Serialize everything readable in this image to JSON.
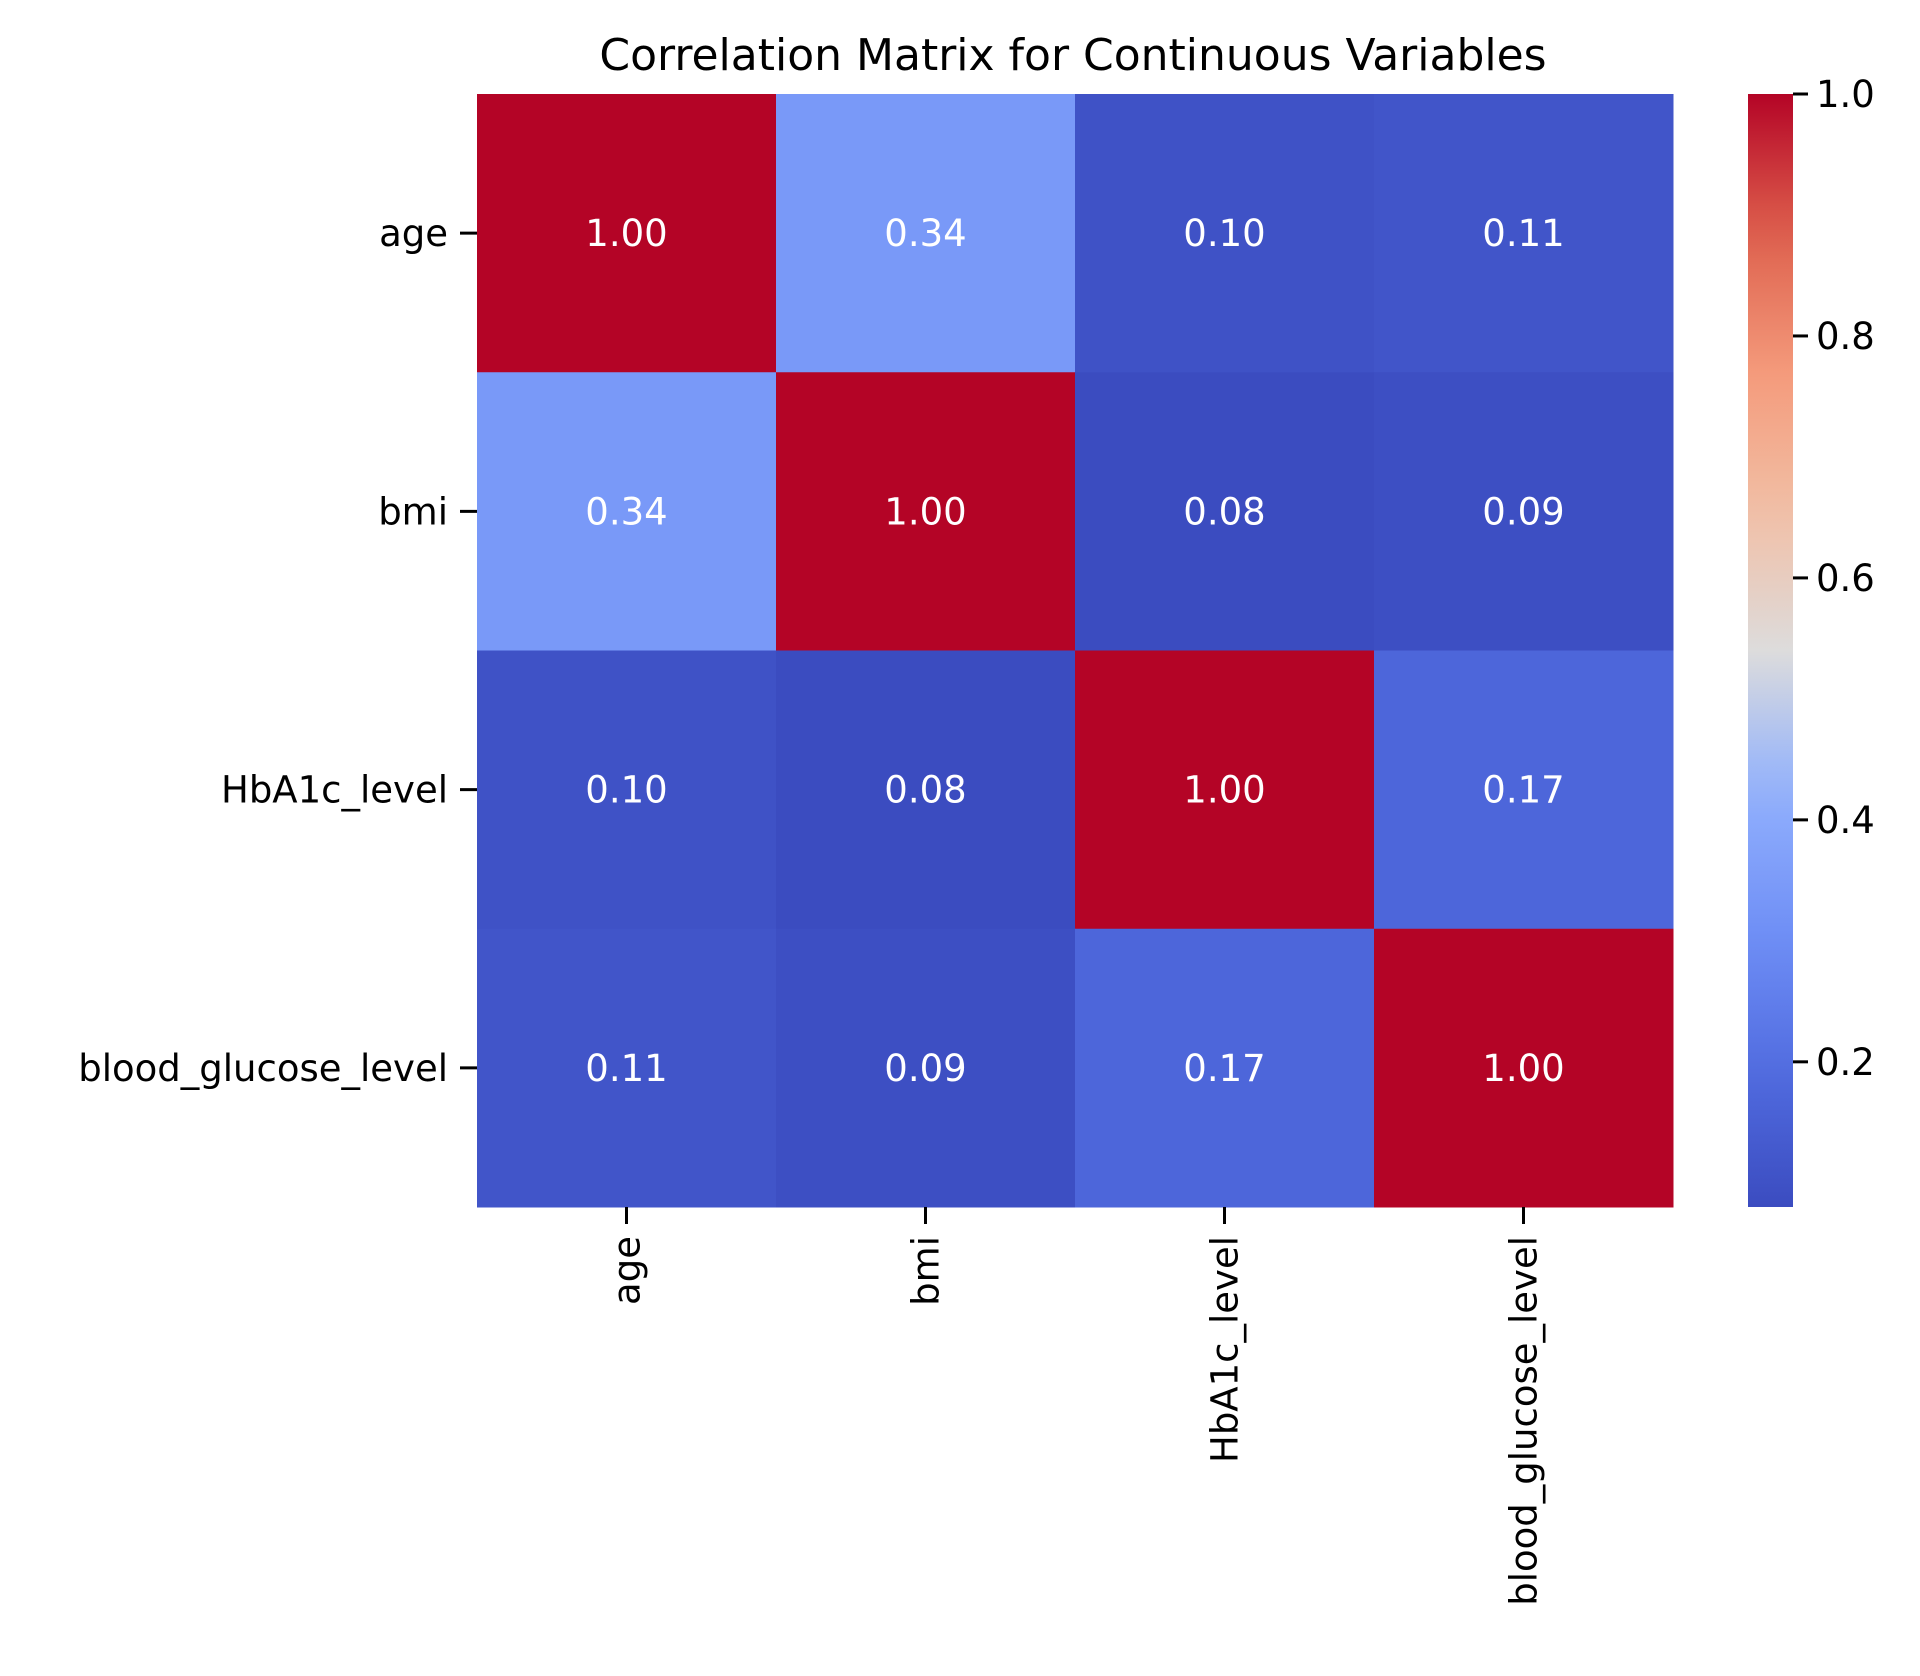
{
  "chart_data": {
    "type": "heatmap",
    "title": "Correlation Matrix for Continuous Variables",
    "xlabel": "",
    "ylabel": "",
    "rows": [
      "age",
      "bmi",
      "HbA1c_level",
      "blood_glucose_level"
    ],
    "columns": [
      "age",
      "bmi",
      "HbA1c_level",
      "blood_glucose_level"
    ],
    "values": [
      [
        1.0,
        0.34,
        0.1,
        0.11
      ],
      [
        0.34,
        1.0,
        0.08,
        0.09
      ],
      [
        0.1,
        0.08,
        1.0,
        0.17
      ],
      [
        0.11,
        0.09,
        0.17,
        1.0
      ]
    ],
    "value_format": "0.00",
    "colormap": "coolwarm",
    "colorbar": {
      "range": [
        0.08,
        1.0
      ],
      "ticks": [
        0.2,
        0.4,
        0.6,
        0.8,
        1.0
      ],
      "tick_labels": [
        "0.2",
        "0.4",
        "0.6",
        "0.8",
        "1.0"
      ]
    },
    "grid": false,
    "colors": {
      "low": "#3b4cc0",
      "mid": "#dddcdc",
      "high": "#b40426",
      "annotation_light": "#ffffff",
      "annotation_dark": "#262626"
    }
  }
}
